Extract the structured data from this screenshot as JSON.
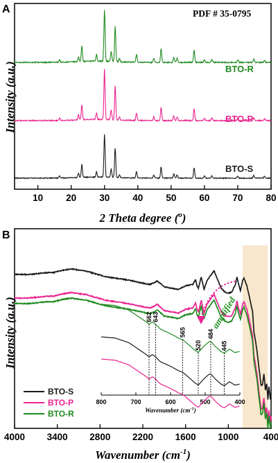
{
  "colors": {
    "bto_s": "#1a1a1a",
    "bto_p": "#e8238f",
    "bto_r": "#1f8a1f",
    "highlight": "#f8e7cc"
  },
  "chart_data": [
    {
      "panel": "A",
      "type": "line",
      "xlabel": "2 Theta degree (°)",
      "xlabel_main": "2 Theta degree (",
      "xlabel_sup": "o",
      "xlabel_end": ")",
      "ylabel": "Intensity (a.u.)",
      "xlim": [
        3,
        80
      ],
      "xticks": [
        10,
        20,
        30,
        40,
        50,
        60,
        70,
        80
      ],
      "annotation": "PDF # 35-0795",
      "peaks": [
        {
          "x": 16.5,
          "h": 0.05
        },
        {
          "x": 22.2,
          "h": 0.1
        },
        {
          "x": 23.2,
          "h": 0.3
        },
        {
          "x": 27.6,
          "h": 0.12
        },
        {
          "x": 30.0,
          "h": 1.0
        },
        {
          "x": 32.0,
          "h": 0.2
        },
        {
          "x": 33.2,
          "h": 0.68
        },
        {
          "x": 34.5,
          "h": 0.06
        },
        {
          "x": 39.6,
          "h": 0.15
        },
        {
          "x": 44.8,
          "h": 0.08
        },
        {
          "x": 47.0,
          "h": 0.26
        },
        {
          "x": 50.8,
          "h": 0.1
        },
        {
          "x": 51.8,
          "h": 0.08
        },
        {
          "x": 56.9,
          "h": 0.24
        },
        {
          "x": 60.0,
          "h": 0.05
        },
        {
          "x": 62.2,
          "h": 0.06
        },
        {
          "x": 70.0,
          "h": 0.05
        },
        {
          "x": 74.8,
          "h": 0.06
        },
        {
          "x": 78.0,
          "h": 0.04
        }
      ],
      "series": [
        {
          "name": "BTO-R",
          "color_key": "bto_r"
        },
        {
          "name": "BTO-P",
          "color_key": "bto_p"
        },
        {
          "name": "BTO-S",
          "color_key": "bto_s"
        }
      ]
    },
    {
      "panel": "B",
      "type": "line",
      "xlabel": "Wavenumber (cm⁻¹)",
      "xlabel_main": "Wavenumber (cm",
      "xlabel_sup": "-1",
      "xlabel_end": ")",
      "ylabel": "Intensity (a.u.)",
      "xlim": [
        4000,
        400
      ],
      "xticks": [
        4000,
        3400,
        2800,
        2200,
        1600,
        1000,
        400
      ],
      "highlight_range": [
        800,
        400
      ],
      "annotation": "amplified",
      "series": [
        {
          "name": "BTO-S",
          "color_key": "bto_s"
        },
        {
          "name": "BTO-P",
          "color_key": "bto_p"
        },
        {
          "name": "BTO-R",
          "color_key": "bto_r"
        }
      ],
      "inset": {
        "xlabel": "Wavenumber (cm⁻¹)",
        "xlabel_main": "Wavenumber (cm",
        "xlabel_sup": "-1",
        "xlabel_end": ")",
        "xlim": [
          800,
          400
        ],
        "xticks": [
          800,
          700,
          600,
          500,
          400
        ],
        "peak_positions": [
          662,
          643,
          565,
          520,
          484,
          445
        ]
      }
    }
  ]
}
